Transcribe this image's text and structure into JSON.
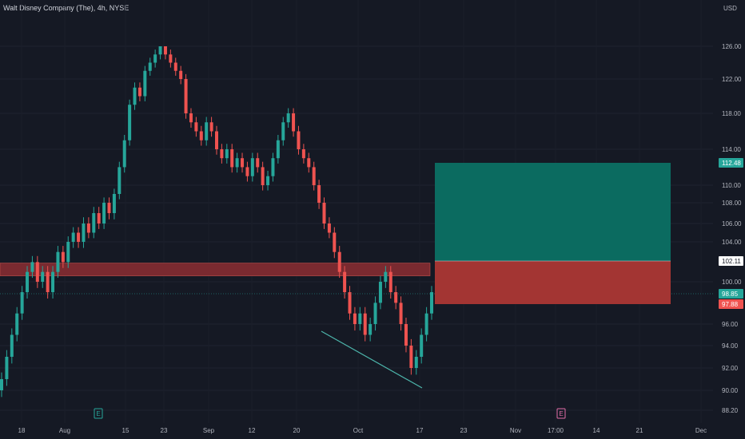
{
  "title": "Walt Disney Company (The), 4h, NYSE",
  "currency_label": "USD",
  "colors": {
    "background": "#151924",
    "up": "#26a69a",
    "down": "#ef5350",
    "text": "#b2b5be",
    "target_zone": "#0b6b60",
    "stop_zone": "#a33533",
    "resistance_zone": "#7a2a30",
    "trendline": "#4db6ac",
    "earnings_badge_1": "#26a69a",
    "earnings_badge_2": "#e26da8"
  },
  "chart_data": {
    "type": "candlestick",
    "y_ticks": [
      "126.00",
      "122.00",
      "118.00",
      "114.00",
      "110.00",
      "108.00",
      "106.00",
      "104.00",
      "100.00",
      "96.00",
      "94.00",
      "92.00",
      "90.00",
      "88.20"
    ],
    "y_tick_values": [
      126,
      122,
      118,
      114,
      110,
      108,
      106,
      104,
      100,
      96,
      94,
      92,
      90,
      88.2
    ],
    "x_ticks": [
      "18",
      "Aug",
      "15",
      "23",
      "Sep",
      "12",
      "20",
      "Oct",
      "17",
      "23",
      "Nov",
      "17:00",
      "14",
      "21",
      "Dec"
    ],
    "price_tags": {
      "target": "112.48",
      "entry": "102.11",
      "last": "98.85",
      "stop": "97.88"
    },
    "target_zone": {
      "from": 102.11,
      "to": 112.48
    },
    "stop_zone": {
      "from": 97.88,
      "to": 102.11
    },
    "resistance_zone": {
      "from": 100.6,
      "to": 101.9
    },
    "earnings_markers": [
      "E",
      "E"
    ],
    "closes": [
      91,
      93,
      95,
      97,
      99,
      101,
      102,
      100,
      101,
      99,
      101,
      103,
      102,
      104,
      105,
      104,
      106,
      105,
      107,
      106,
      108,
      107,
      109,
      112,
      115,
      119,
      121,
      120,
      123,
      124,
      125,
      126,
      125,
      124,
      123,
      122,
      118,
      117,
      116,
      115,
      117,
      116,
      114,
      113,
      114,
      112,
      113,
      112,
      111,
      113,
      112,
      110,
      111,
      113,
      115,
      117,
      118,
      116,
      114,
      113,
      112,
      110,
      108,
      106,
      105,
      103,
      101,
      99,
      97,
      96,
      97,
      95,
      96,
      98,
      100,
      101,
      99,
      98,
      96,
      94,
      92,
      93,
      95,
      97,
      99
    ]
  }
}
